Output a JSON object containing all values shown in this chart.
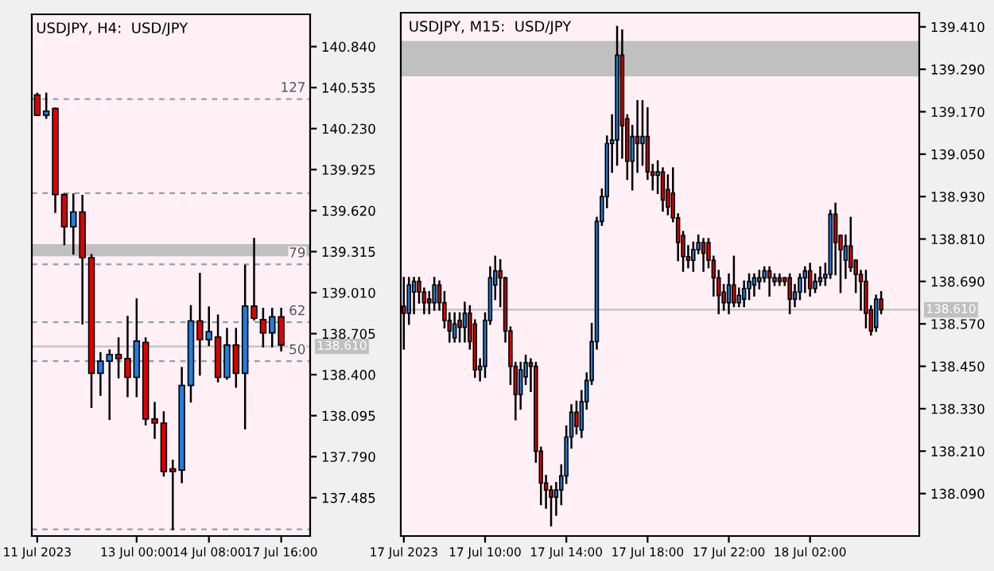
{
  "chart_data": [
    {
      "type": "candlestick",
      "title": "USDJPY, H4:  USD/JPY",
      "categories": [
        "11 Jul 2023",
        null,
        null,
        null,
        null,
        null,
        null,
        null,
        null,
        null,
        null,
        "13 Jul 00:00",
        null,
        null,
        null,
        null,
        null,
        null,
        null,
        "14 Jul 08:00",
        null,
        null,
        null,
        null,
        null,
        null,
        null,
        "17 Jul 16:00"
      ],
      "ohlc": [
        [
          140.48,
          140.49,
          140.33,
          140.33
        ],
        [
          140.33,
          140.49,
          140.31,
          140.36
        ],
        [
          140.38,
          140.38,
          139.61,
          139.74
        ],
        [
          139.74,
          139.74,
          139.37,
          139.5
        ],
        [
          139.5,
          139.74,
          139.3,
          139.61
        ],
        [
          139.61,
          139.73,
          138.78,
          139.27
        ],
        [
          139.27,
          139.29,
          138.16,
          138.41
        ],
        [
          138.41,
          138.56,
          138.25,
          138.5
        ],
        [
          138.5,
          138.58,
          138.07,
          138.55
        ],
        [
          138.55,
          138.67,
          138.38,
          138.52
        ],
        [
          138.52,
          138.83,
          138.24,
          138.38
        ],
        [
          138.38,
          138.96,
          138.24,
          138.65
        ],
        [
          138.64,
          138.67,
          138.03,
          138.07
        ],
        [
          138.07,
          138.19,
          137.93,
          138.04
        ],
        [
          138.04,
          138.12,
          137.65,
          137.68
        ],
        [
          137.7,
          137.76,
          137.25,
          137.68
        ],
        [
          137.69,
          138.45,
          137.6,
          138.32
        ],
        [
          138.32,
          138.91,
          138.2,
          138.8
        ],
        [
          138.8,
          139.15,
          138.4,
          138.66
        ],
        [
          138.66,
          138.9,
          138.62,
          138.72
        ],
        [
          138.68,
          138.84,
          138.35,
          138.38
        ],
        [
          138.38,
          138.74,
          138.37,
          138.62
        ],
        [
          138.62,
          138.74,
          138.31,
          138.41
        ],
        [
          138.41,
          139.21,
          138.0,
          138.91
        ],
        [
          138.91,
          139.41,
          138.81,
          138.82
        ],
        [
          138.81,
          138.89,
          138.61,
          138.71
        ],
        [
          138.71,
          138.89,
          138.61,
          138.83
        ],
        [
          138.83,
          138.89,
          138.58,
          138.62
        ]
      ],
      "ylim": [
        137.2,
        141.08
      ],
      "yticks": [
        {
          "value": 140.84,
          "label": "140.840"
        },
        {
          "value": 140.535,
          "label": "140.535"
        },
        {
          "value": 140.23,
          "label": "140.230"
        },
        {
          "value": 139.925,
          "label": "139.925"
        },
        {
          "value": 139.62,
          "label": "139.620"
        },
        {
          "value": 139.315,
          "label": "139.315"
        },
        {
          "value": 139.01,
          "label": "139.010"
        },
        {
          "value": 138.705,
          "label": "138.705"
        },
        {
          "value": 138.4,
          "label": "138.400"
        },
        {
          "value": 138.095,
          "label": "138.095"
        },
        {
          "value": 137.79,
          "label": "137.790"
        },
        {
          "value": 137.485,
          "label": "137.485"
        }
      ],
      "annotations": [
        {
          "text": "127",
          "y": 140.45
        },
        {
          "text": "79",
          "y": 139.22
        },
        {
          "text": "62",
          "y": 138.79
        },
        {
          "text": "50",
          "y": 138.5
        }
      ],
      "ref_lines": [
        {
          "axis": "y",
          "value": 140.45,
          "label": null,
          "line_style": "dashed",
          "color": "#8fa0a8"
        },
        {
          "axis": "y",
          "value": 139.75,
          "label": null,
          "line_style": "dashed",
          "color": "#8fa0a8"
        },
        {
          "axis": "y",
          "value": 139.22,
          "label": null,
          "line_style": "dashed",
          "color": "#8fa0a8"
        },
        {
          "axis": "y",
          "value": 138.79,
          "label": null,
          "line_style": "dashed",
          "color": "#8fa0a8"
        },
        {
          "axis": "y",
          "value": 138.5,
          "label": null,
          "line_style": "dashed",
          "color": "#8fa0a8"
        },
        {
          "axis": "y",
          "value": 137.25,
          "label": null,
          "line_style": "dashed",
          "color": "#8fa0a8"
        },
        {
          "axis": "y",
          "value": 138.61,
          "label": "138.610",
          "line_style": "solid",
          "color": "#c0c0c0"
        }
      ],
      "bands": [
        {
          "axis": "y",
          "from": 139.28,
          "to": 139.37,
          "label": null,
          "color": "#c0c0c0"
        }
      ],
      "grid": false
    },
    {
      "type": "candlestick",
      "title": "USDJPY, M15:  USD/JPY",
      "categories": [
        "17 Jul 2023",
        null,
        null,
        null,
        null,
        null,
        null,
        null,
        null,
        null,
        null,
        null,
        null,
        null,
        null,
        null,
        "17 Jul 10:00",
        null,
        null,
        null,
        null,
        null,
        null,
        null,
        null,
        null,
        null,
        null,
        null,
        null,
        null,
        null,
        "17 Jul 14:00",
        null,
        null,
        null,
        null,
        null,
        null,
        null,
        null,
        null,
        null,
        null,
        null,
        null,
        null,
        null,
        "17 Jul 18:00",
        null,
        null,
        null,
        null,
        null,
        null,
        null,
        null,
        null,
        null,
        null,
        null,
        null,
        null,
        null,
        "17 Jul 22:00",
        null,
        null,
        null,
        null,
        null,
        null,
        null,
        null,
        null,
        null,
        null,
        null,
        null,
        null,
        null,
        "18 Jul 02:00",
        null,
        null,
        null,
        null,
        null,
        null,
        null,
        null,
        null,
        null,
        null,
        null,
        null,
        null
      ],
      "ohlc": [
        [
          138.62,
          138.7,
          138.5,
          138.6
        ],
        [
          138.6,
          138.7,
          138.57,
          138.68
        ],
        [
          138.66,
          138.7,
          138.6,
          138.69
        ],
        [
          138.69,
          138.7,
          138.63,
          138.66
        ],
        [
          138.66,
          138.67,
          138.6,
          138.63
        ],
        [
          138.64,
          138.66,
          138.6,
          138.63
        ],
        [
          138.63,
          138.7,
          138.61,
          138.68
        ],
        [
          138.68,
          138.69,
          138.61,
          138.63
        ],
        [
          138.63,
          138.66,
          138.56,
          138.58
        ],
        [
          138.58,
          138.6,
          138.52,
          138.55
        ],
        [
          138.53,
          138.6,
          138.52,
          138.57
        ],
        [
          138.58,
          138.6,
          138.52,
          138.56
        ],
        [
          138.56,
          138.63,
          138.52,
          138.6
        ],
        [
          138.6,
          138.62,
          138.5,
          138.52
        ],
        [
          138.57,
          138.58,
          138.42,
          138.44
        ],
        [
          138.44,
          138.47,
          138.41,
          138.45
        ],
        [
          138.45,
          138.6,
          138.42,
          138.58
        ],
        [
          138.58,
          138.73,
          138.57,
          138.7
        ],
        [
          138.68,
          138.76,
          138.64,
          138.72
        ],
        [
          138.72,
          138.75,
          138.62,
          138.7
        ],
        [
          138.7,
          138.7,
          138.52,
          138.55
        ],
        [
          138.55,
          138.56,
          138.4,
          138.45
        ],
        [
          138.45,
          138.46,
          138.3,
          138.37
        ],
        [
          138.37,
          138.46,
          138.33,
          138.44
        ],
        [
          138.42,
          138.48,
          138.4,
          138.46
        ],
        [
          138.46,
          138.47,
          138.38,
          138.45
        ],
        [
          138.45,
          138.46,
          138.18,
          138.21
        ],
        [
          138.21,
          138.22,
          138.06,
          138.12
        ],
        [
          138.12,
          138.14,
          138.05,
          138.1
        ],
        [
          138.1,
          138.11,
          138.0,
          138.08
        ],
        [
          138.08,
          138.12,
          138.03,
          138.1
        ],
        [
          138.1,
          138.17,
          138.06,
          138.14
        ],
        [
          138.14,
          138.28,
          138.12,
          138.25
        ],
        [
          138.25,
          138.34,
          138.22,
          138.32
        ],
        [
          138.32,
          138.35,
          138.26,
          138.28
        ],
        [
          138.27,
          138.38,
          138.25,
          138.35
        ],
        [
          138.35,
          138.43,
          138.33,
          138.41
        ],
        [
          138.41,
          138.57,
          138.4,
          138.52
        ],
        [
          138.52,
          138.87,
          138.5,
          138.86
        ],
        [
          138.86,
          138.95,
          138.85,
          138.93
        ],
        [
          138.93,
          139.1,
          138.9,
          139.08
        ],
        [
          139.08,
          139.16,
          139.0,
          139.09
        ],
        [
          139.09,
          139.41,
          139.02,
          139.33
        ],
        [
          139.33,
          139.4,
          139.04,
          139.13
        ],
        [
          139.15,
          139.16,
          138.98,
          139.03
        ],
        [
          139.03,
          139.13,
          138.95,
          139.1
        ],
        [
          139.1,
          139.2,
          139.0,
          139.08
        ],
        [
          139.08,
          139.2,
          139.02,
          139.1
        ],
        [
          139.1,
          139.18,
          138.98,
          139.0
        ],
        [
          139.0,
          139.02,
          138.95,
          138.99
        ],
        [
          138.99,
          139.03,
          138.94,
          139.0
        ],
        [
          139.0,
          139.01,
          138.89,
          138.92
        ],
        [
          138.95,
          138.99,
          138.88,
          138.9
        ],
        [
          138.94,
          139.01,
          138.86,
          138.87
        ],
        [
          138.87,
          138.88,
          138.75,
          138.8
        ],
        [
          138.82,
          138.83,
          138.72,
          138.76
        ],
        [
          138.76,
          138.79,
          138.73,
          138.75
        ],
        [
          138.75,
          138.8,
          138.72,
          138.78
        ],
        [
          138.78,
          138.82,
          138.77,
          138.8
        ],
        [
          138.8,
          138.81,
          138.72,
          138.77
        ],
        [
          138.8,
          138.81,
          138.73,
          138.75
        ],
        [
          138.75,
          138.76,
          138.65,
          138.7
        ],
        [
          138.7,
          138.72,
          138.6,
          138.65
        ],
        [
          138.66,
          138.68,
          138.61,
          138.63
        ],
        [
          138.63,
          138.71,
          138.6,
          138.68
        ],
        [
          138.68,
          138.76,
          138.62,
          138.63
        ],
        [
          138.63,
          138.67,
          138.62,
          138.65
        ],
        [
          138.64,
          138.69,
          138.62,
          138.67
        ],
        [
          138.67,
          138.71,
          138.64,
          138.69
        ],
        [
          138.68,
          138.71,
          138.65,
          138.7
        ],
        [
          138.69,
          138.72,
          138.67,
          138.7
        ],
        [
          138.7,
          138.73,
          138.69,
          138.72
        ],
        [
          138.72,
          138.73,
          138.65,
          138.7
        ],
        [
          138.69,
          138.71,
          138.68,
          138.7
        ],
        [
          138.7,
          138.71,
          138.68,
          138.69
        ],
        [
          138.7,
          138.7,
          138.68,
          138.69
        ],
        [
          138.7,
          138.71,
          138.6,
          138.64
        ],
        [
          138.64,
          138.68,
          138.62,
          138.66
        ],
        [
          138.66,
          138.71,
          138.64,
          138.7
        ],
        [
          138.7,
          138.73,
          138.66,
          138.72
        ],
        [
          138.72,
          138.74,
          138.65,
          138.67
        ],
        [
          138.67,
          138.71,
          138.66,
          138.69
        ],
        [
          138.69,
          138.73,
          138.68,
          138.7
        ],
        [
          138.7,
          138.74,
          138.68,
          138.71
        ],
        [
          138.71,
          138.89,
          138.7,
          138.88
        ],
        [
          138.88,
          138.91,
          138.71,
          138.8
        ],
        [
          138.82,
          138.82,
          138.66,
          138.78
        ],
        [
          138.75,
          138.82,
          138.7,
          138.79
        ],
        [
          138.79,
          138.87,
          138.72,
          138.73
        ],
        [
          138.75,
          138.75,
          138.66,
          138.71
        ],
        [
          138.71,
          138.72,
          138.61,
          138.69
        ],
        [
          138.69,
          138.72,
          138.56,
          138.6
        ],
        [
          138.61,
          138.62,
          138.54,
          138.55
        ],
        [
          138.56,
          138.65,
          138.55,
          138.64
        ],
        [
          138.64,
          138.66,
          138.6,
          138.61
        ]
      ],
      "ylim": [
        137.97,
        139.45
      ],
      "yticks": [
        {
          "value": 139.41,
          "label": "139.410"
        },
        {
          "value": 139.29,
          "label": "139.290"
        },
        {
          "value": 139.17,
          "label": "139.170"
        },
        {
          "value": 139.05,
          "label": "139.050"
        },
        {
          "value": 138.93,
          "label": "138.930"
        },
        {
          "value": 138.81,
          "label": "138.810"
        },
        {
          "value": 138.69,
          "label": "138.690"
        },
        {
          "value": 138.57,
          "label": "138.570"
        },
        {
          "value": 138.45,
          "label": "138.450"
        },
        {
          "value": 138.33,
          "label": "138.330"
        },
        {
          "value": 138.21,
          "label": "138.210"
        },
        {
          "value": 138.09,
          "label": "138.090"
        }
      ],
      "ref_lines": [
        {
          "axis": "y",
          "value": 138.61,
          "label": "138.610",
          "line_style": "solid",
          "color": "#c0c0c0"
        }
      ],
      "bands": [
        {
          "axis": "y",
          "from": 139.27,
          "to": 139.37,
          "label": null,
          "color": "#c0c0c0"
        }
      ],
      "grid": false
    }
  ]
}
